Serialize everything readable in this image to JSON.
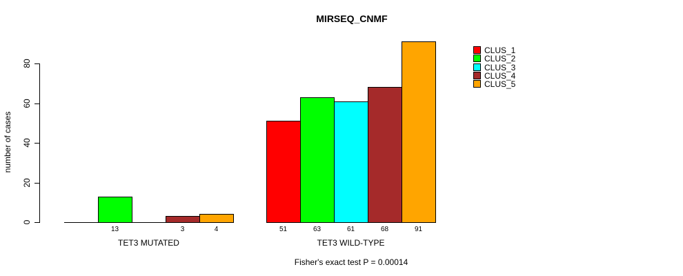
{
  "chart_data": {
    "type": "bar",
    "title": "MIRSEQ_CNMF",
    "ylabel": "number of cases",
    "xlabel": "",
    "footnote": "Fisher's exact test P = 0.00014",
    "yticks": [
      0,
      20,
      40,
      60,
      80
    ],
    "ylim": [
      0,
      95
    ],
    "grid": false,
    "legend_position": "right-outside",
    "categories": [
      "TET3 MUTATED",
      "TET3 WILD-TYPE"
    ],
    "series": [
      {
        "name": "CLUS_1",
        "color": "#FF0000",
        "values": [
          0,
          51
        ]
      },
      {
        "name": "CLUS_2",
        "color": "#00FF00",
        "values": [
          13,
          63
        ]
      },
      {
        "name": "CLUS_3",
        "color": "#00FFFF",
        "values": [
          0,
          61
        ]
      },
      {
        "name": "CLUS_4",
        "color": "#A52A2A",
        "values": [
          3,
          68
        ]
      },
      {
        "name": "CLUS_5",
        "color": "#FFA500",
        "values": [
          4,
          91
        ]
      }
    ],
    "bar_value_label_rule": "value shown under each bar with value > 0"
  }
}
